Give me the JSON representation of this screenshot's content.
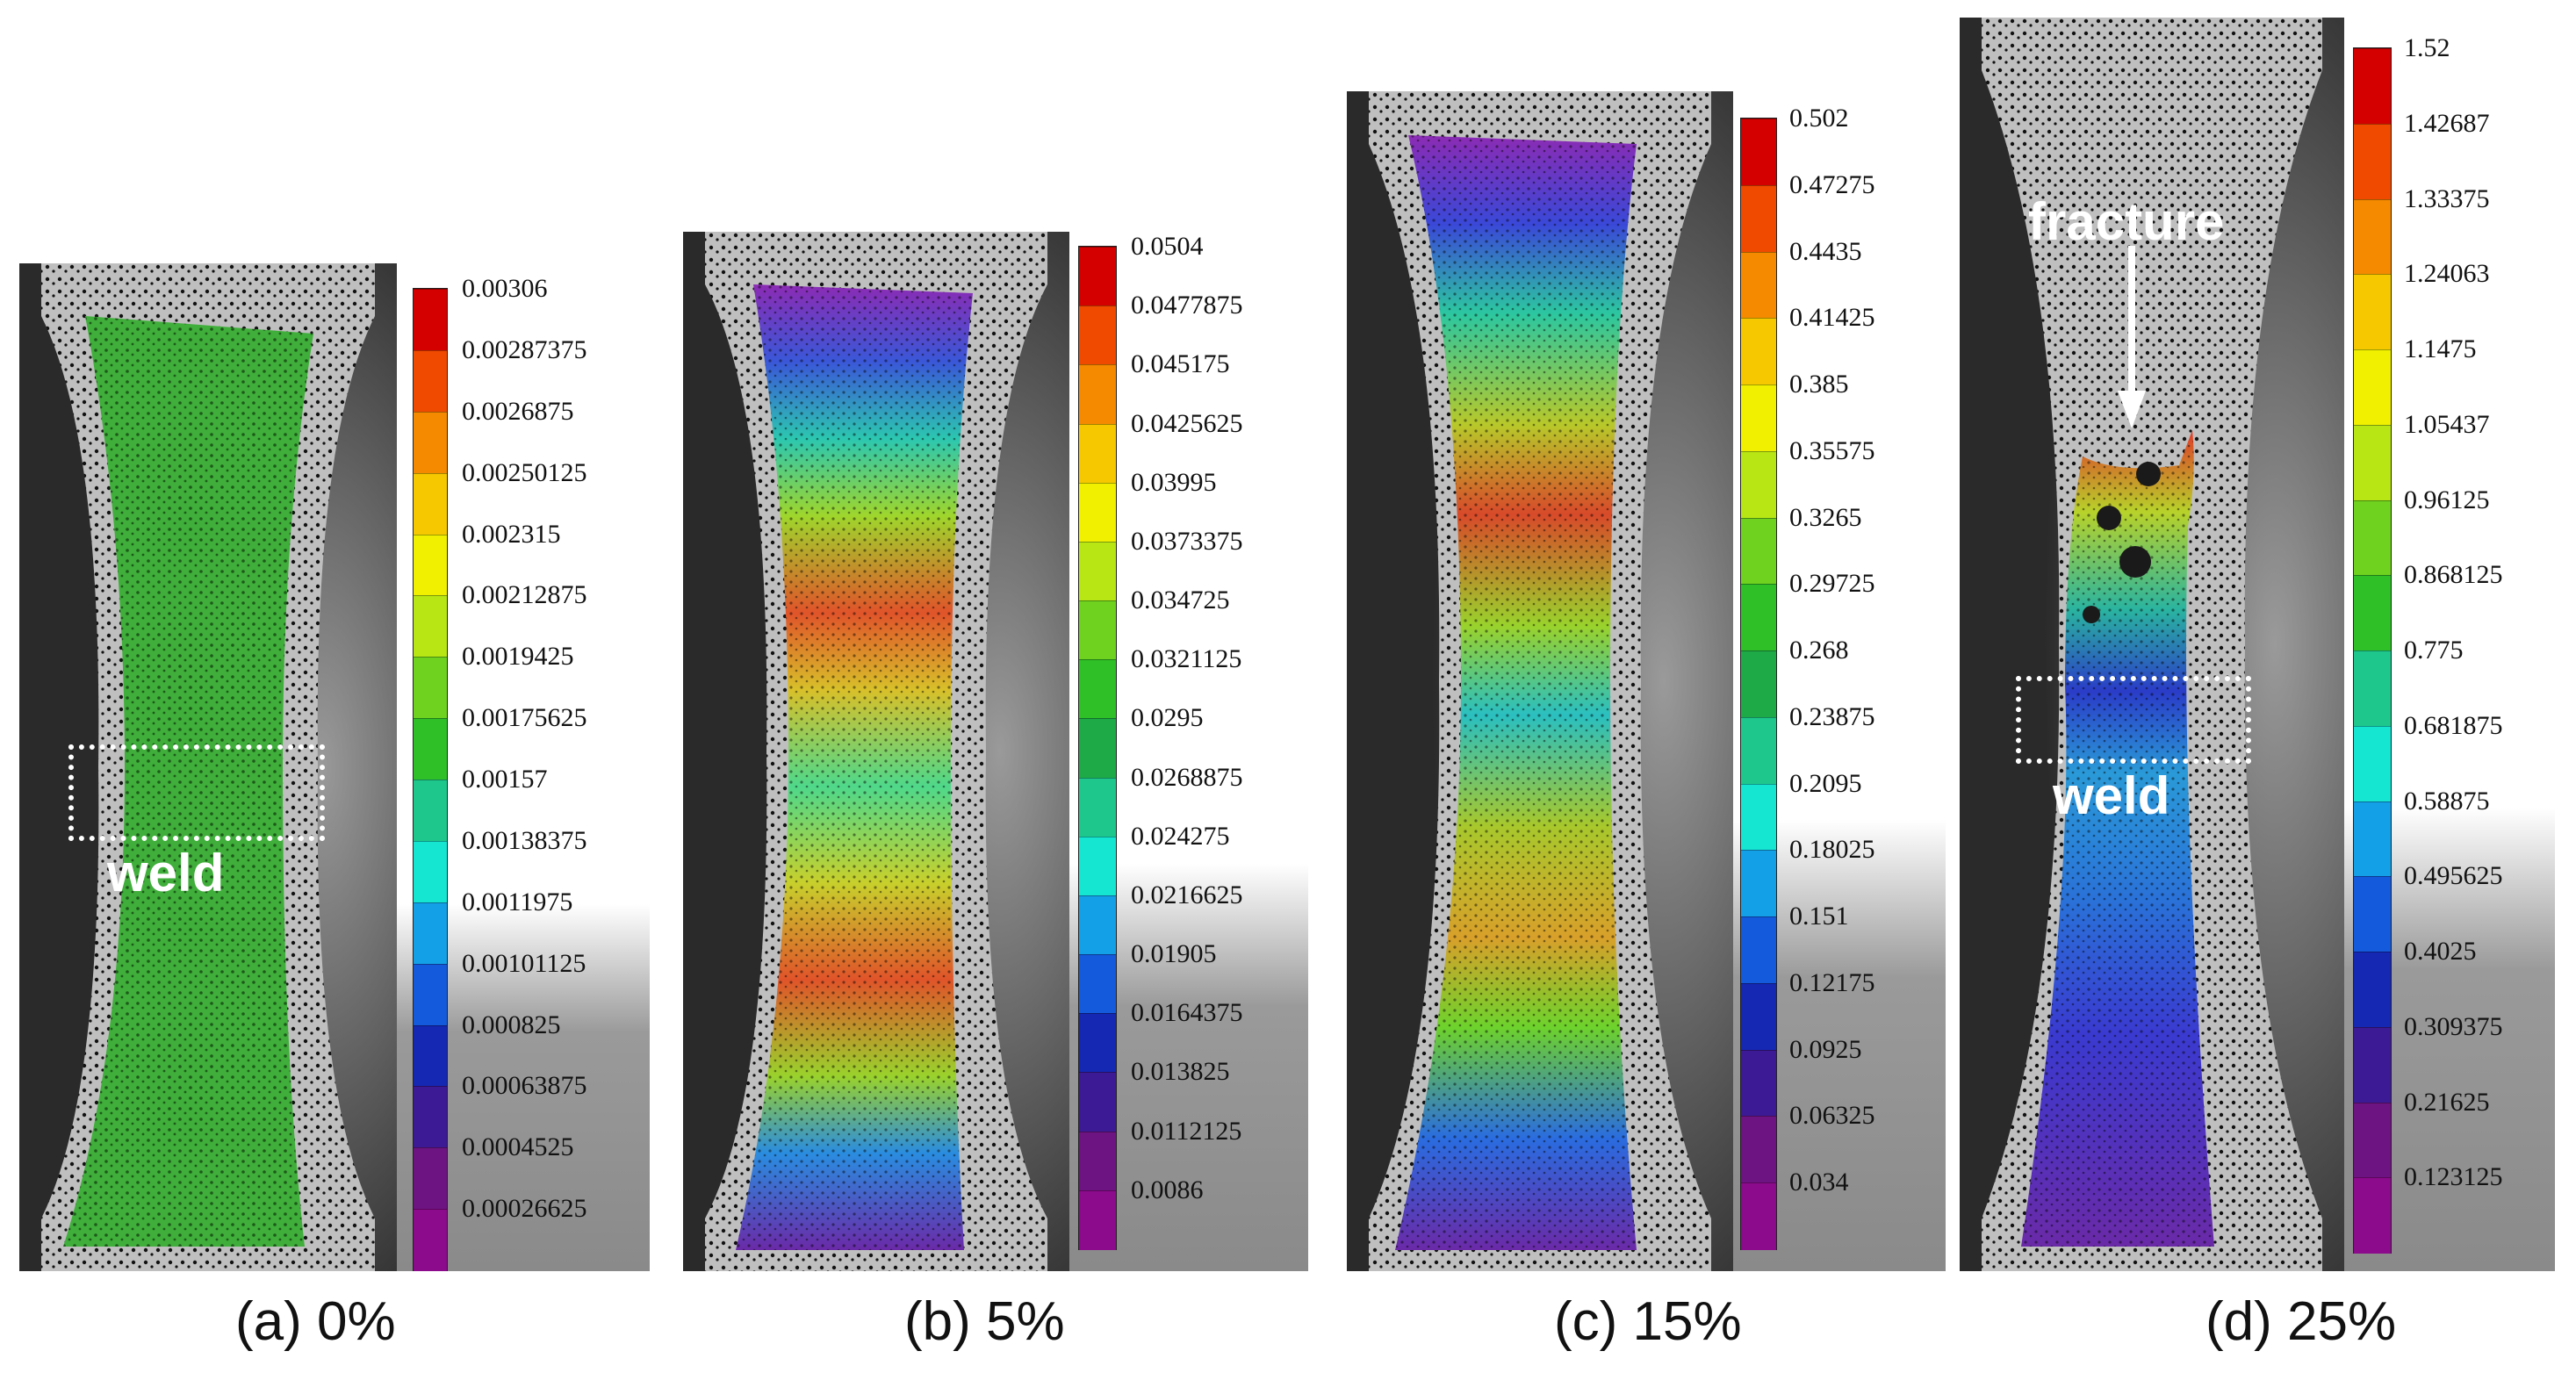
{
  "panels": [
    {
      "caption": "(a) 0%",
      "scale": [
        "0.00306",
        "0.00287375",
        "0.0026875",
        "0.00250125",
        "0.002315",
        "0.00212875",
        "0.0019425",
        "0.00175625",
        "0.00157",
        "0.00138375",
        "0.0011975",
        "0.00101125",
        "0.000825",
        "0.00063875",
        "0.0004525",
        "0.00026625"
      ],
      "weld_label": "weld"
    },
    {
      "caption": "(b) 5%",
      "scale": [
        "0.0504",
        "0.0477875",
        "0.045175",
        "0.0425625",
        "0.03995",
        "0.0373375",
        "0.034725",
        "0.0321125",
        "0.0295",
        "0.0268875",
        "0.024275",
        "0.0216625",
        "0.01905",
        "0.0164375",
        "0.013825",
        "0.0112125",
        "0.0086"
      ]
    },
    {
      "caption": "(c) 15%",
      "scale": [
        "0.502",
        "0.47275",
        "0.4435",
        "0.41425",
        "0.385",
        "0.35575",
        "0.3265",
        "0.29725",
        "0.268",
        "0.23875",
        "0.2095",
        "0.18025",
        "0.151",
        "0.12175",
        "0.0925",
        "0.06325",
        "0.034"
      ]
    },
    {
      "caption": "(d) 25%",
      "scale": [
        "1.52",
        "1.42687",
        "1.33375",
        "1.24063",
        "1.1475",
        "1.05437",
        "0.96125",
        "0.868125",
        "0.775",
        "0.681875",
        "0.58875",
        "0.495625",
        "0.4025",
        "0.309375",
        "0.21625",
        "0.123125"
      ],
      "weld_label": "weld",
      "fracture_label": "fracture"
    }
  ],
  "colors": {
    "jet": [
      "#d40000",
      "#f04a00",
      "#f58a00",
      "#f5c800",
      "#f0f000",
      "#b8e614",
      "#6fd21e",
      "#2fc028",
      "#1eaa46",
      "#1ec88c",
      "#14e6d2",
      "#14a0e6",
      "#145adc",
      "#1428b4",
      "#3c1a96",
      "#6e1482",
      "#8c0a8c"
    ],
    "weld_box": "#ffffff"
  }
}
